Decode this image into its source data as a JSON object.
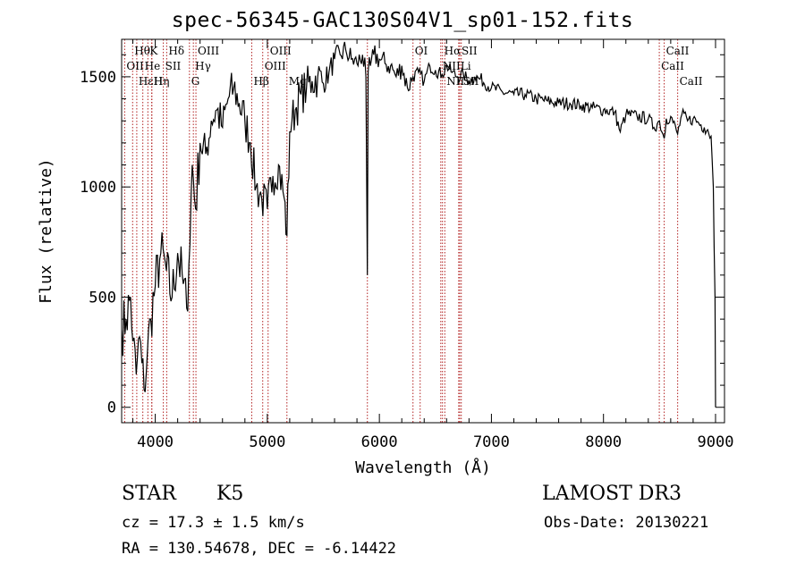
{
  "chart_data": {
    "type": "line",
    "title": "spec-56345-GAC130S04V1_sp01-152.fits",
    "xlabel": "Wavelength (Å)",
    "ylabel": "Flux (relative)",
    "xlim": [
      3700,
      9080
    ],
    "ylim": [
      -70,
      1670
    ],
    "xticks": [
      4000,
      5000,
      6000,
      7000,
      8000,
      9000
    ],
    "yticks": [
      0,
      500,
      1000,
      1500
    ],
    "xtick_labels": [
      "4000",
      "5000",
      "6000",
      "7000",
      "8000",
      "9000"
    ],
    "ytick_labels": [
      "0",
      "500",
      "1000",
      "1500"
    ],
    "series": [
      {
        "name": "spectrum",
        "color": "#000000",
        "x": [
          3700,
          3740,
          3780,
          3800,
          3830,
          3860,
          3880,
          3900,
          3930,
          3960,
          4000,
          4050,
          4100,
          4150,
          4200,
          4250,
          4280,
          4300,
          4330,
          4360,
          4400,
          4450,
          4500,
          4550,
          4600,
          4650,
          4700,
          4750,
          4800,
          4850,
          4900,
          4950,
          5000,
          5050,
          5100,
          5150,
          5175,
          5200,
          5220,
          5250,
          5300,
          5350,
          5400,
          5450,
          5500,
          5550,
          5600,
          5650,
          5700,
          5750,
          5800,
          5850,
          5880,
          5893,
          5900,
          5920,
          5950,
          6000,
          6050,
          6100,
          6150,
          6200,
          6250,
          6300,
          6350,
          6400,
          6450,
          6500,
          6560,
          6600,
          6650,
          6700,
          6750,
          6800,
          6850,
          6900,
          7000,
          7100,
          7200,
          7300,
          7400,
          7500,
          7600,
          7700,
          7800,
          7900,
          8000,
          8100,
          8150,
          8200,
          8300,
          8400,
          8450,
          8500,
          8542,
          8560,
          8600,
          8662,
          8700,
          8750,
          8800,
          8850,
          8900,
          8930,
          8960,
          8980,
          8995,
          9000
        ],
        "y": [
          350,
          400,
          500,
          300,
          150,
          320,
          200,
          80,
          250,
          400,
          550,
          700,
          620,
          500,
          700,
          560,
          450,
          650,
          1100,
          900,
          1200,
          1150,
          1300,
          1350,
          1270,
          1400,
          1450,
          1380,
          1300,
          1200,
          1000,
          950,
          900,
          1050,
          1100,
          950,
          780,
          1250,
          1300,
          1350,
          1420,
          1450,
          1480,
          1500,
          1470,
          1520,
          1580,
          1600,
          1620,
          1580,
          1560,
          1600,
          1500,
          600,
          1520,
          1550,
          1600,
          1580,
          1560,
          1550,
          1500,
          1550,
          1450,
          1500,
          1520,
          1480,
          1550,
          1530,
          1510,
          1550,
          1520,
          1500,
          1510,
          1480,
          1500,
          1490,
          1450,
          1430,
          1420,
          1420,
          1400,
          1390,
          1380,
          1380,
          1370,
          1360,
          1350,
          1340,
          1250,
          1330,
          1320,
          1310,
          1270,
          1300,
          1220,
          1310,
          1320,
          1240,
          1330,
          1300,
          1310,
          1290,
          1270,
          1260,
          1230,
          1000,
          500,
          0
        ]
      }
    ],
    "lines": {
      "top": [
        {
          "label": "Hθ",
          "wavelength": 3798
        },
        {
          "label": "K",
          "wavelength": 3934
        },
        {
          "label": "Hδ",
          "wavelength": 4102
        },
        {
          "label": "OIII",
          "wavelength": 4363
        },
        {
          "label": "OIII",
          "wavelength": 5007
        },
        {
          "label": "OI",
          "wavelength": 6300
        },
        {
          "label": "Hα",
          "wavelength": 6563
        },
        {
          "label": "SII",
          "wavelength": 6717
        },
        {
          "label": "CaII",
          "wavelength": 8542
        }
      ],
      "mid": [
        {
          "label": "OII",
          "wavelength": 3727
        },
        {
          "label": "He",
          "wavelength": 3889
        },
        {
          "label": "SII",
          "wavelength": 4072
        },
        {
          "label": "Hγ",
          "wavelength": 4340
        },
        {
          "label": "OIII",
          "wavelength": 4959
        },
        {
          "label": "NII",
          "wavelength": 6548
        },
        {
          "label": "Li",
          "wavelength": 6708
        },
        {
          "label": "CaII",
          "wavelength": 8498
        }
      ],
      "low": [
        {
          "label": "Hε",
          "wavelength": 3835
        },
        {
          "label": "Hη",
          "wavelength": 3970
        },
        {
          "label": "H",
          "wavelength": 3968
        },
        {
          "label": "G",
          "wavelength": 4305
        },
        {
          "label": "Hβ",
          "wavelength": 4861
        },
        {
          "label": "Mg",
          "wavelength": 5175
        },
        {
          "label": "NII",
          "wavelength": 6584
        },
        {
          "label": "SII",
          "wavelength": 6731
        },
        {
          "label": "CaII",
          "wavelength": 8662
        }
      ],
      "extra": [
        {
          "label": "",
          "wavelength": 5893
        },
        {
          "label": "",
          "wavelength": 6364
        }
      ],
      "line_color": "#b22222"
    }
  },
  "info": {
    "class_label": "STAR",
    "subclass": "K5",
    "survey": "LAMOST DR3",
    "cz": "cz = 17.3 ± 1.5 km/s",
    "obs_date": "Obs-Date: 20130221",
    "radec": "RA = 130.54678, DEC =  -6.14422"
  }
}
